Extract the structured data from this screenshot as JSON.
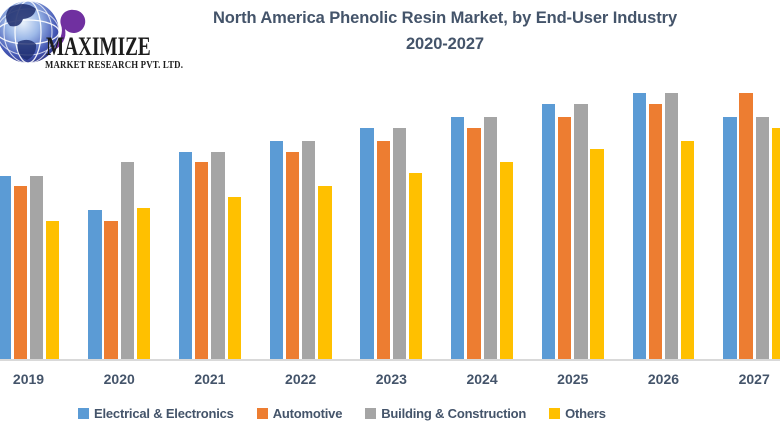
{
  "logo": {
    "brand": "MAXIMIZE",
    "subtitle": "MARKET RESEARCH PVT. LTD.",
    "accent_purple": "#7030A0"
  },
  "title": {
    "line1": "North America Phenolic Resin Market, by End-User Industry",
    "line2": "2020-2027",
    "color": "#44546A"
  },
  "chart_data": {
    "type": "bar",
    "title": "North America Phenolic Resin Market, by End-User Industry 2020-2027",
    "categories": [
      "2019",
      "2020",
      "2021",
      "2022",
      "2023",
      "2024",
      "2025",
      "2026",
      "2027"
    ],
    "series": [
      {
        "name": "Electrical & Electronics",
        "color": "#5B9BD5",
        "values": [
          69,
          56,
          78,
          82,
          87,
          91,
          96,
          100,
          91
        ]
      },
      {
        "name": "Automotive",
        "color": "#ED7D31",
        "values": [
          65,
          52,
          74,
          78,
          82,
          87,
          91,
          96,
          100
        ]
      },
      {
        "name": "Building & Construction",
        "color": "#A5A5A5",
        "values": [
          69,
          74,
          78,
          82,
          87,
          91,
          96,
          100,
          91
        ]
      },
      {
        "name": "Others",
        "color": "#FFC000",
        "values": [
          52,
          57,
          61,
          65,
          70,
          74,
          79,
          82,
          87
        ]
      }
    ],
    "xlabel": "",
    "ylabel": "",
    "ylim": [
      0,
      100
    ],
    "y_axis_labels_visible": false,
    "gridlines": false,
    "legend_position": "bottom",
    "axis_line_color": "#D9D9D9",
    "tick_label_color": "#44546A",
    "note": "No y-axis scale is shown in the source image; values are relative units estimated from bar heights with the tallest bar = 100. First (2019) blue bar is clipped at the left edge and last (2027) yellow bar is clipped at the right edge."
  }
}
